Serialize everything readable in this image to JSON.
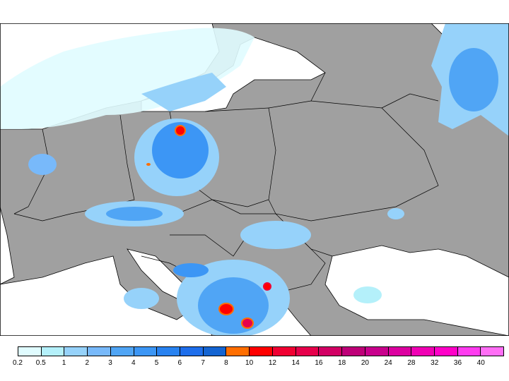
{
  "legend": {
    "labels": [
      "0.2",
      "0.5",
      "1",
      "2",
      "3",
      "4",
      "5",
      "6",
      "7",
      "8",
      "10",
      "12",
      "14",
      "16",
      "18",
      "20",
      "24",
      "28",
      "32",
      "36",
      "40"
    ],
    "colors": [
      "#e0fcff",
      "#b4f0fa",
      "#96d2fa",
      "#78b9fa",
      "#50a5f5",
      "#3c96f5",
      "#2882f0",
      "#1e6eeb",
      "#1464d2",
      "#ff6e00",
      "#ff0000",
      "#f00032",
      "#e6004b",
      "#d20064",
      "#be0078",
      "#c8008c",
      "#dc00a0",
      "#f000b4",
      "#ff00c8",
      "#ff3cf0",
      "#ff6ef5"
    ]
  },
  "colors": {
    "land": "#a0a0a0",
    "sea": "#ffffff",
    "border": "#000000"
  }
}
